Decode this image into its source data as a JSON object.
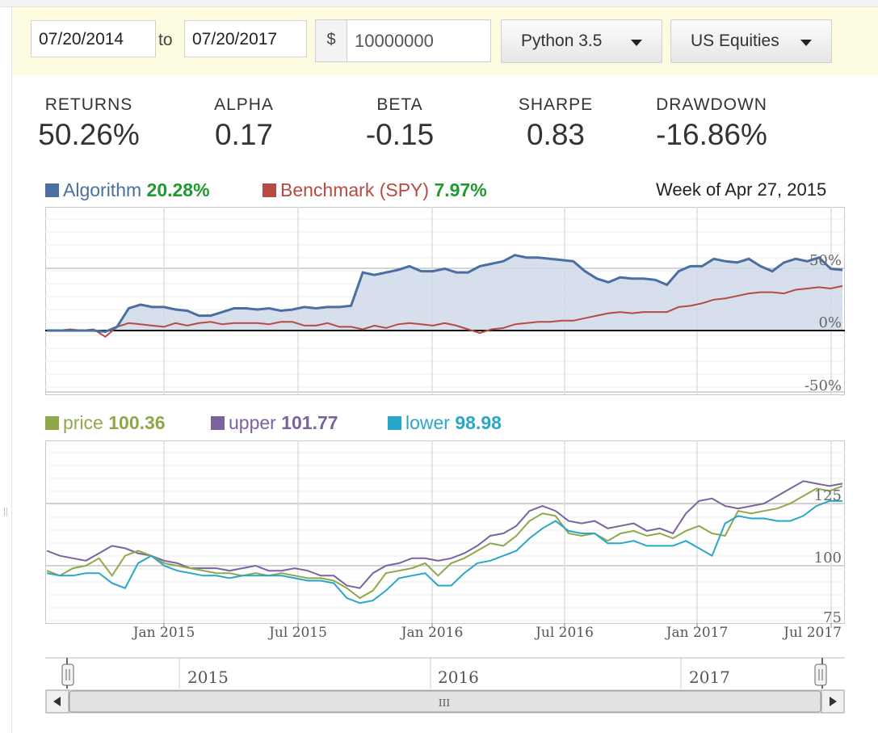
{
  "toolbar": {
    "start_date": "07/20/2014",
    "to_label": "to",
    "end_date": "07/20/2017",
    "currency": "$",
    "capital": "10000000",
    "python_version": "Python 3.5",
    "universe": "US Equities"
  },
  "stats": [
    {
      "label": "RETURNS",
      "value": "50.26%"
    },
    {
      "label": "ALPHA",
      "value": "0.17"
    },
    {
      "label": "BETA",
      "value": "-0.15"
    },
    {
      "label": "SHARPE",
      "value": "0.83"
    },
    {
      "label": "DRAWDOWN",
      "value": "-16.86%"
    }
  ],
  "performance_legend": {
    "algorithm": {
      "label": "Algorithm",
      "value": "20.28%"
    },
    "benchmark": {
      "label": "Benchmark (SPY)",
      "value": "7.97%"
    },
    "week": "Week of Apr 27, 2015"
  },
  "indicator_legend": {
    "price": {
      "label": "price",
      "value": "100.36"
    },
    "upper": {
      "label": "upper",
      "value": "101.77"
    },
    "lower": {
      "label": "lower",
      "value": "98.98"
    }
  },
  "colors": {
    "algorithm": "#4a6fa0",
    "benchmark": "#b84a44",
    "price": "#8fa84a",
    "upper": "#7c63a0",
    "lower": "#2aa6c8",
    "positive_value": "#1f9a2e"
  },
  "navigator": {
    "year_labels": [
      "2015",
      "2016",
      "2017"
    ],
    "scroll_grip": "III",
    "left_arrow_icon": "triangle-left",
    "right_arrow_icon": "triangle-right"
  },
  "chart_data": [
    {
      "type": "area",
      "x_ticks": [
        "Jan 2015",
        "Jul 2015",
        "Jan 2016",
        "Jul 2016",
        "Jan 2017",
        "Jul 2017"
      ],
      "y_ticks": [
        "50%",
        "0%",
        "-50%"
      ],
      "ylim": [
        -50,
        50
      ],
      "grid": true,
      "legend": "top-left",
      "series": [
        {
          "name": "Algorithm",
          "values": [
            0,
            0,
            0,
            0,
            0,
            -1,
            3,
            18,
            21,
            19,
            19,
            17,
            16,
            12,
            12,
            15,
            18,
            18,
            17,
            18,
            16,
            17,
            19,
            18,
            19,
            19,
            20,
            47,
            45,
            47,
            49,
            52,
            48,
            48,
            50,
            47,
            47,
            52,
            54,
            56,
            61,
            59,
            59,
            58,
            57,
            56,
            48,
            42,
            39,
            43,
            42,
            42,
            41,
            37,
            48,
            52,
            52,
            58,
            56,
            55,
            58,
            52,
            48,
            55,
            58,
            56,
            59,
            50,
            49
          ]
        },
        {
          "name": "Benchmark (SPY)",
          "values": [
            0,
            0,
            1,
            0,
            1,
            -5,
            3,
            6,
            5,
            4,
            3,
            6,
            4,
            6,
            7,
            5,
            6,
            6,
            6,
            5,
            7,
            7,
            4,
            4,
            6,
            3,
            3,
            1,
            4,
            2,
            5,
            6,
            5,
            4,
            6,
            4,
            1,
            -2,
            1,
            2,
            5,
            6,
            7,
            7,
            8,
            8,
            10,
            12,
            14,
            15,
            14,
            15,
            15,
            15,
            19,
            20,
            22,
            25,
            26,
            28,
            30,
            31,
            31,
            30,
            33,
            34,
            35,
            34,
            36
          ]
        }
      ]
    },
    {
      "type": "line",
      "x_ticks": [
        "Jan 2015",
        "Jul 2015",
        "Jan 2016",
        "Jul 2016",
        "Jan 2017",
        "Jul 2017"
      ],
      "y_ticks": [
        "125",
        "100",
        "75"
      ],
      "ylim": [
        75,
        135
      ],
      "grid": true,
      "legend": "top-left",
      "series": [
        {
          "name": "price",
          "values": [
            98,
            96,
            99,
            100,
            103,
            96,
            104,
            106,
            104,
            101,
            100,
            99,
            98,
            97,
            97,
            96,
            97,
            96,
            97,
            96,
            95,
            95,
            94,
            91,
            87,
            90,
            97,
            98,
            99,
            101,
            96,
            101,
            103,
            106,
            109,
            108,
            112,
            118,
            121,
            120,
            113,
            112,
            113,
            110,
            113,
            114,
            112,
            113,
            111,
            114,
            116,
            113,
            112,
            122,
            121,
            122,
            123,
            125,
            128,
            131,
            130,
            132
          ]
        },
        {
          "name": "upper",
          "values": [
            106,
            104,
            103,
            102,
            105,
            108,
            107,
            105,
            104,
            102,
            101,
            99,
            99,
            99,
            98,
            99,
            100,
            98,
            98,
            99,
            98,
            96,
            96,
            92,
            91,
            97,
            100,
            101,
            103,
            103,
            102,
            103,
            105,
            108,
            112,
            113,
            116,
            122,
            124,
            122,
            118,
            117,
            118,
            115,
            116,
            117,
            114,
            115,
            113,
            121,
            126,
            127,
            124,
            123,
            124,
            125,
            128,
            131,
            134,
            133,
            132,
            133
          ]
        },
        {
          "name": "lower",
          "values": [
            97,
            96,
            96,
            97,
            97,
            93,
            91,
            101,
            104,
            100,
            98,
            97,
            96,
            96,
            95,
            96,
            96,
            96,
            96,
            95,
            94,
            94,
            93,
            87,
            85,
            86,
            90,
            95,
            96,
            97,
            92,
            92,
            97,
            101,
            102,
            104,
            106,
            111,
            115,
            118,
            114,
            113,
            113,
            109,
            109,
            110,
            108,
            108,
            108,
            110,
            107,
            104,
            117,
            120,
            119,
            119,
            118,
            118,
            120,
            124,
            126,
            126
          ]
        }
      ]
    }
  ]
}
